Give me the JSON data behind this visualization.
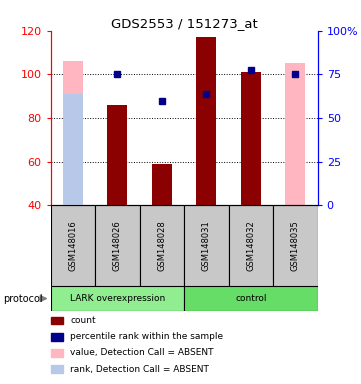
{
  "title": "GDS2553 / 151273_at",
  "samples": [
    "GSM148016",
    "GSM148026",
    "GSM148028",
    "GSM148031",
    "GSM148032",
    "GSM148035"
  ],
  "ylim_left": [
    40,
    120
  ],
  "ylim_right": [
    0,
    100
  ],
  "yticks_left": [
    40,
    60,
    80,
    100,
    120
  ],
  "yticks_right": [
    0,
    25,
    50,
    75,
    100
  ],
  "ytick_labels_right": [
    "0",
    "25",
    "50",
    "75",
    "100%"
  ],
  "bar_values": [
    null,
    86,
    59,
    117,
    101,
    null
  ],
  "bar_absent_values": [
    106,
    null,
    null,
    null,
    null,
    105
  ],
  "rank_absent_values": [
    91,
    null,
    null,
    null,
    null,
    null
  ],
  "percentile_left_values": [
    null,
    100,
    88,
    91,
    102,
    100
  ],
  "bar_color": "#8B0000",
  "bar_absent_color": "#FFB6C1",
  "rank_absent_color": "#B8C8E8",
  "percentile_color": "#00008B",
  "bar_width": 0.45,
  "grid_vals": [
    60,
    80,
    100
  ],
  "group1_label": "LARK overexpression",
  "group2_label": "control",
  "group1_color": "#90EE90",
  "group2_color": "#66DD66",
  "sample_box_color": "#C8C8C8",
  "legend_items": [
    {
      "color": "#8B0000",
      "label": "count"
    },
    {
      "color": "#00008B",
      "label": "percentile rank within the sample"
    },
    {
      "color": "#FFB6C1",
      "label": "value, Detection Call = ABSENT"
    },
    {
      "color": "#B8C8E8",
      "label": "rank, Detection Call = ABSENT"
    }
  ]
}
